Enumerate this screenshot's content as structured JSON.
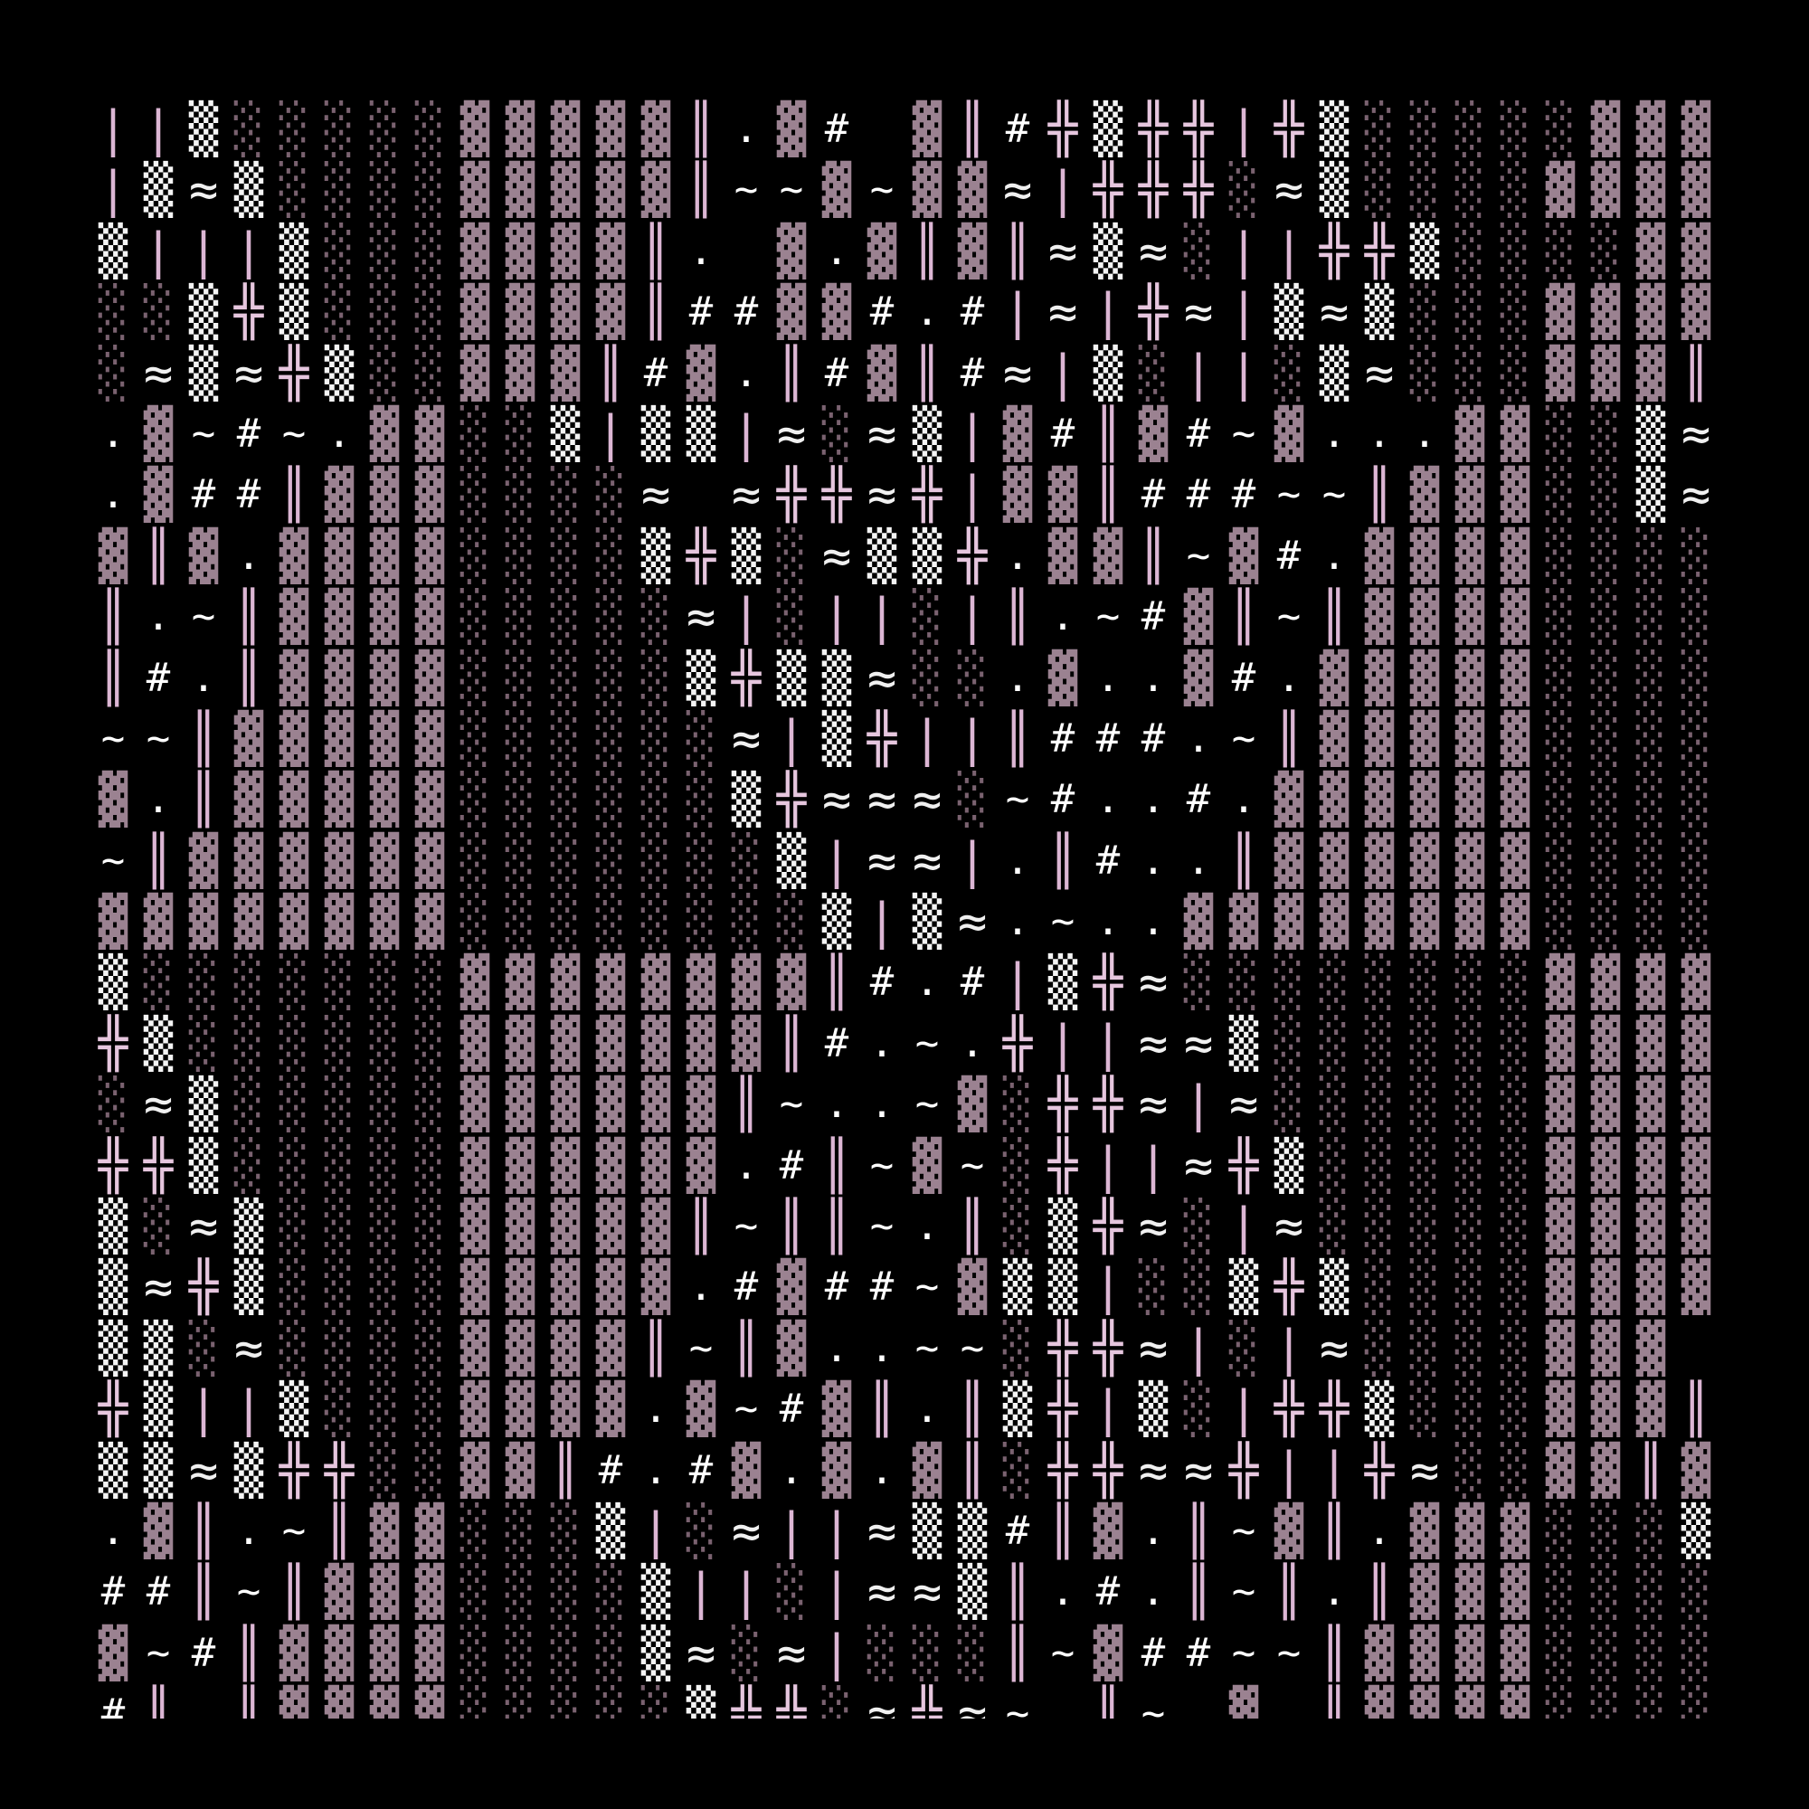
{
  "palette": {
    "background": "#000000",
    "▓": "#9b8291",
    "▒": "#f4f4f4",
    "░": "#7a6270",
    "≈": "#f0f0f0",
    "╬": "#e6c6de",
    "║": "#dcb6d4",
    "|": "#dcb6d4",
    "#": "#ffffff",
    ".": "#ffffff",
    "~": "#ffffff"
  },
  "rows": [
    "||▒░░░░░▓▓▓▓▓║.▓# ▓║#╬▒╬╬|╬▒░░░░░▓▓▓▓",
    "|▒≈▒░░░░▓▓▓▓▓║~~▓~▓▓≈|╬╬╬░≈▒░░░░▓▓▓▓",
    "▒|||▒░░░▓▓▓▓║. ▓.▓║▓║≈▒≈░||╬╬▒░░░░▓▓▓▓",
    "░░▒╬▒░░░▓▓▓▓║##▓▓#.#|≈|╬≈|▒≈▒░░░▓▓▓▓",
    "░≈▒≈╬▒░░▓▓▓║#▓.║#▓║#≈|▒░||░▒≈░░░▓▓▓║#",
    ".▓~#~.▓▓░░▒|▒▒|≈░≈▒|▓#║▓#~▓...▓▓░░▒≈",
    ".▓##║▓▓▓░░░░≈ ≈╬╬≈╬|▓▓║###~~║▓▓▓░░▒≈",
    "▓║▓.▓▓▓▓░░░░▒╬▒░≈▒▒╬.▓▓║~▓#.▓▓▓▓░░░░",
    "║.~║▓▓▓▓░░░░░≈|░||░|║.~#▓║~║▓▓▓▓░░░░",
    "║#.║▓▓▓▓░░░░░▒╬▒▒≈░░.▓..▓#.▓▓▓▓▓░░░░",
    "~~║▓▓▓▓▓░░░░░░≈|▒╬||║###.~║▓▓▓▓▓░░░░",
    "▓.║▓▓▓▓▓░░░░░░▒╬≈≈≈░~#..#.▓▓▓▓▓▓░░░░",
    "~║▓▓▓▓▓▓░░░░░░░▒|≈≈|.║#..║▓▓▓▓▓▓░░░░",
    "▓▓▓▓▓▓▓▓░░░░░░░░▒|▒≈.~..▓▓▓▓▓▓▓▓░░░░",
    "▒░░░░░░░▓▓▓▓▓▓▓▓║#.#|▒╬≈░░░░░░░░▓▓▓▓",
    "╬▒░░░░░░▓▓▓▓▓▓▓║#.~.╬||≈≈▒░░░░░░▓▓▓▓",
    "░≈▒░░░░░▓▓▓▓▓▓║~..~▓░╬╬≈|≈░░░░░░▓▓▓▓",
    "╬╬▒░░░░░▓▓▓▓▓▓.#║~▓~░╬||≈╬▒░░░░░▓▓▓▓",
    "▒░≈▒░░░░▓▓▓▓▓║~║║~.║░▒╬≈░|≈░░░░░▓▓▓▓",
    "▒≈╬▒░░░░▓▓▓▓▓.#▓##~▓▒▒|░░▒╬▒░░░░▓▓▓▓",
    "▒▒░≈░░░░▓▓▓▓║~║▓..~~░╬╬≈|░|≈░░░░▓▓▓ ",
    "╬▒||▒░░░▓▓▓▓.▓~#▓║.║▒╬|▒░|╬╬▒░░░▓▓▓║",
    "▒▒≈▒╬╬░░▓▓║#.#▓.▓.▓║░╬╬≈≈╬||╬≈░░▓▓║▓",
    ".▓║.~║▓▓░░░▒|░≈||≈▒▒#║▓.║~▓║.▓▓▓░░░▒",
    "##║~║▓▓▓░░░░▒||░|≈≈▒║.#.║~║.║▓▓▓░░░░",
    "▓~#║▓▓▓▓░░░░▒≈░≈|░░░║~▓##~~║▓▓▓▓░░░░",
    "#║ ║▓▓▓▓░░░░░▒╬╬░≈╬≈~ ║~ ▓ ║▓▓▓▓░░░░"
  ]
}
